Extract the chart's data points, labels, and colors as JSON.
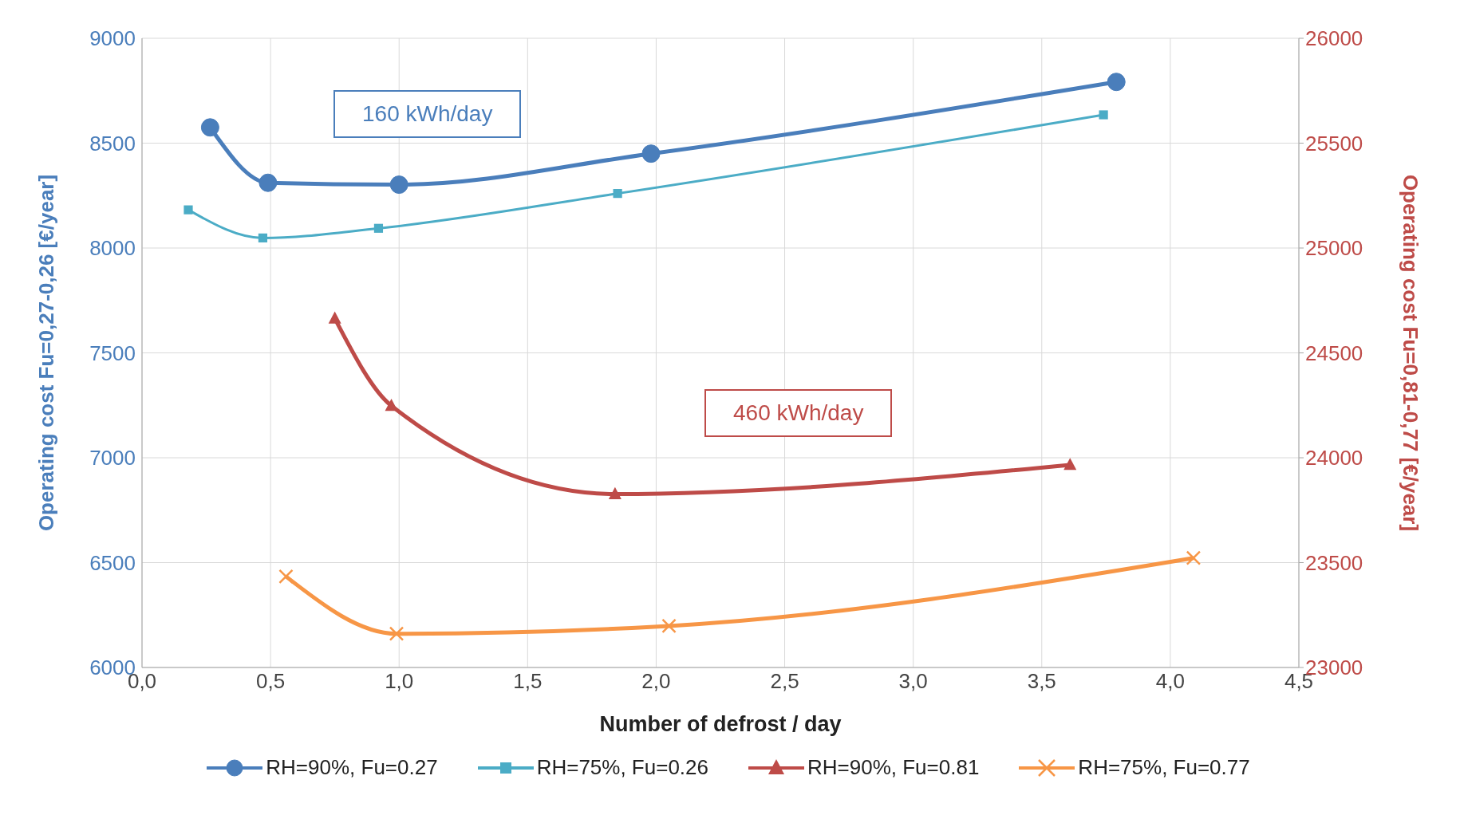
{
  "chart_data": {
    "type": "line",
    "xlabel": "Number of defrost / day",
    "ylabel": "Operating cost Fu=0,27-0,26  [€/year]",
    "y2label": "Operating cost Fu=0,81-0,77  [€/year]",
    "xlim": [
      0,
      4.5
    ],
    "xticks": [
      {
        "value": 0,
        "label": "0,0"
      },
      {
        "value": 0.5,
        "label": "0,5"
      },
      {
        "value": 1,
        "label": "1,0"
      },
      {
        "value": 1.5,
        "label": "1,5"
      },
      {
        "value": 2,
        "label": "2,0"
      },
      {
        "value": 2.5,
        "label": "2,5"
      },
      {
        "value": 3,
        "label": "3,0"
      },
      {
        "value": 3.5,
        "label": "3,5"
      },
      {
        "value": 4,
        "label": "4,0"
      },
      {
        "value": 4.5,
        "label": "4,5"
      }
    ],
    "ylim": [
      6000,
      9000
    ],
    "yticks": [
      6000,
      6500,
      7000,
      7500,
      8000,
      8500,
      9000
    ],
    "y2lim": [
      23000,
      26000
    ],
    "y2ticks": [
      23000,
      23500,
      24000,
      24500,
      25000,
      25500,
      26000
    ],
    "grid": true,
    "legend": "bottom",
    "line_style": "solid",
    "annotations": [
      "160 kWh/day",
      "460 kWh/day"
    ],
    "series": [
      {
        "name": "RH=90%, Fu=0.27",
        "color": "#4a7ebb",
        "marker": "circle",
        "x": [
          0.265,
          0.49,
          1.0,
          1.98,
          3.79
        ],
        "values": [
          8575,
          8311,
          8302,
          8450,
          8792
        ]
      },
      {
        "name": "RH=75%, Fu=0.26",
        "color": "#4bacc6",
        "marker": "square",
        "x": [
          0.18,
          0.47,
          0.92,
          1.85,
          3.74
        ],
        "values": [
          8182,
          8048,
          8094,
          8260,
          8635
        ]
      },
      {
        "name": "RH=90%, Fu=0.81",
        "color": "#be4b48",
        "marker": "triangle",
        "axis": "y2",
        "x": [
          0.75,
          0.97,
          1.84,
          3.61
        ],
        "values": [
          24664,
          24248,
          23827,
          23966
        ]
      },
      {
        "name": "RH=75%, Fu=0.77",
        "color": "#f79646",
        "marker": "cross",
        "axis": "y2",
        "x": [
          0.56,
          0.99,
          2.05,
          4.09
        ],
        "values": [
          23434,
          23161,
          23198,
          23522
        ]
      }
    ]
  }
}
